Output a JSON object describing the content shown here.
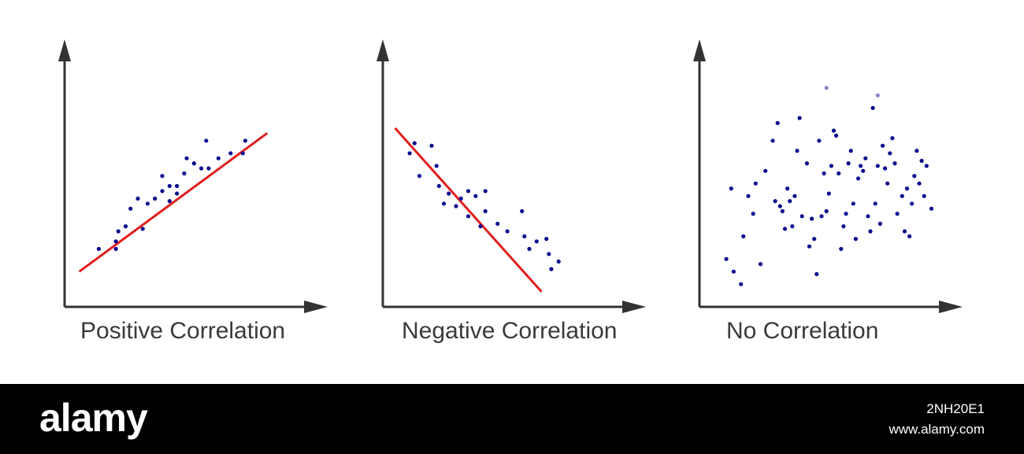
{
  "chart_data": [
    {
      "type": "scatter",
      "title": "Positive Correlation",
      "trend": "positive",
      "xlim": [
        0,
        100
      ],
      "ylim": [
        0,
        100
      ],
      "grid": false,
      "points": [
        [
          14,
          23
        ],
        [
          21,
          26
        ],
        [
          22,
          30
        ],
        [
          21,
          23
        ],
        [
          25,
          32
        ],
        [
          27,
          39
        ],
        [
          30,
          43
        ],
        [
          32,
          31
        ],
        [
          34,
          41
        ],
        [
          37,
          43
        ],
        [
          40,
          46
        ],
        [
          40,
          52
        ],
        [
          43,
          42
        ],
        [
          43,
          48
        ],
        [
          46,
          48
        ],
        [
          46,
          45
        ],
        [
          49,
          53
        ],
        [
          50,
          59
        ],
        [
          53,
          57
        ],
        [
          56,
          55
        ],
        [
          58,
          66
        ],
        [
          59,
          55
        ],
        [
          63,
          59
        ],
        [
          68,
          61
        ],
        [
          74,
          66
        ],
        [
          73,
          61
        ]
      ],
      "trend_line": [
        [
          6,
          14
        ],
        [
          83,
          69
        ]
      ]
    },
    {
      "type": "scatter",
      "title": "Negative Correlation",
      "trend": "negative",
      "xlim": [
        0,
        100
      ],
      "ylim": [
        0,
        100
      ],
      "grid": false,
      "points": [
        [
          11,
          61
        ],
        [
          13,
          65
        ],
        [
          15,
          52
        ],
        [
          20,
          64
        ],
        [
          22,
          56
        ],
        [
          23,
          48
        ],
        [
          25,
          41
        ],
        [
          27,
          45
        ],
        [
          30,
          40
        ],
        [
          32,
          43
        ],
        [
          35,
          46
        ],
        [
          35,
          36
        ],
        [
          38,
          44
        ],
        [
          40,
          32
        ],
        [
          42,
          46
        ],
        [
          42,
          38
        ],
        [
          47,
          33
        ],
        [
          51,
          30
        ],
        [
          57,
          38
        ],
        [
          58,
          28
        ],
        [
          60,
          23
        ],
        [
          63,
          26
        ],
        [
          67,
          27
        ],
        [
          68,
          21
        ],
        [
          69,
          15
        ],
        [
          72,
          18
        ]
      ],
      "trend_line": [
        [
          5,
          71
        ],
        [
          65,
          6
        ]
      ]
    },
    {
      "type": "scatter",
      "title": "No Correlation",
      "trend": "none",
      "xlim": [
        0,
        100
      ],
      "ylim": [
        0,
        100
      ],
      "grid": false,
      "points": [
        [
          11,
          19
        ],
        [
          13,
          47
        ],
        [
          14,
          14
        ],
        [
          17,
          9
        ],
        [
          18,
          28
        ],
        [
          20,
          44
        ],
        [
          22,
          37
        ],
        [
          23,
          49
        ],
        [
          25,
          17
        ],
        [
          27,
          54
        ],
        [
          30,
          66
        ],
        [
          31,
          42
        ],
        [
          32,
          73
        ],
        [
          33,
          40
        ],
        [
          34,
          38
        ],
        [
          35,
          31
        ],
        [
          36,
          47
        ],
        [
          37,
          42
        ],
        [
          38,
          32
        ],
        [
          39,
          44
        ],
        [
          40,
          62
        ],
        [
          41,
          75
        ],
        [
          42,
          36
        ],
        [
          44,
          57
        ],
        [
          45,
          24
        ],
        [
          46,
          35
        ],
        [
          47,
          27
        ],
        [
          48,
          13
        ],
        [
          49,
          66
        ],
        [
          50,
          36
        ],
        [
          51,
          53
        ],
        [
          52,
          38
        ],
        [
          53,
          45
        ],
        [
          54,
          56
        ],
        [
          55,
          70
        ],
        [
          56,
          68
        ],
        [
          57,
          53
        ],
        [
          58,
          23
        ],
        [
          59,
          32
        ],
        [
          60,
          37
        ],
        [
          61,
          57
        ],
        [
          62,
          62
        ],
        [
          63,
          41
        ],
        [
          64,
          27
        ],
        [
          65,
          51
        ],
        [
          66,
          56
        ],
        [
          67,
          54
        ],
        [
          68,
          59
        ],
        [
          69,
          36
        ],
        [
          70,
          30
        ],
        [
          71,
          79
        ],
        [
          72,
          41
        ],
        [
          73,
          56
        ],
        [
          74,
          33
        ],
        [
          75,
          64
        ],
        [
          76,
          55
        ],
        [
          77,
          49
        ],
        [
          78,
          61
        ],
        [
          79,
          67
        ],
        [
          80,
          57
        ],
        [
          81,
          37
        ],
        [
          83,
          44
        ],
        [
          84,
          30
        ],
        [
          85,
          47
        ],
        [
          86,
          28
        ],
        [
          87,
          41
        ],
        [
          88,
          52
        ],
        [
          89,
          62
        ],
        [
          90,
          49
        ],
        [
          91,
          58
        ],
        [
          92,
          44
        ],
        [
          93,
          56
        ],
        [
          95,
          39
        ],
        [
          52,
          87
        ],
        [
          73,
          84
        ]
      ],
      "faded_points": [
        [
          52,
          87
        ],
        [
          73,
          84
        ]
      ],
      "trend_line": null
    }
  ],
  "colors": {
    "axis": "#333333",
    "point": "#0a0a8c",
    "point_faded": "#8a86c8",
    "trend_line": "#e01e1e",
    "caption": "#3a3a3a",
    "footer_bg": "#000000",
    "footer_text": "#ffffff"
  },
  "footer": {
    "brand": "alamy",
    "image_id": "2NH20E1",
    "site": "www.alamy.com"
  }
}
